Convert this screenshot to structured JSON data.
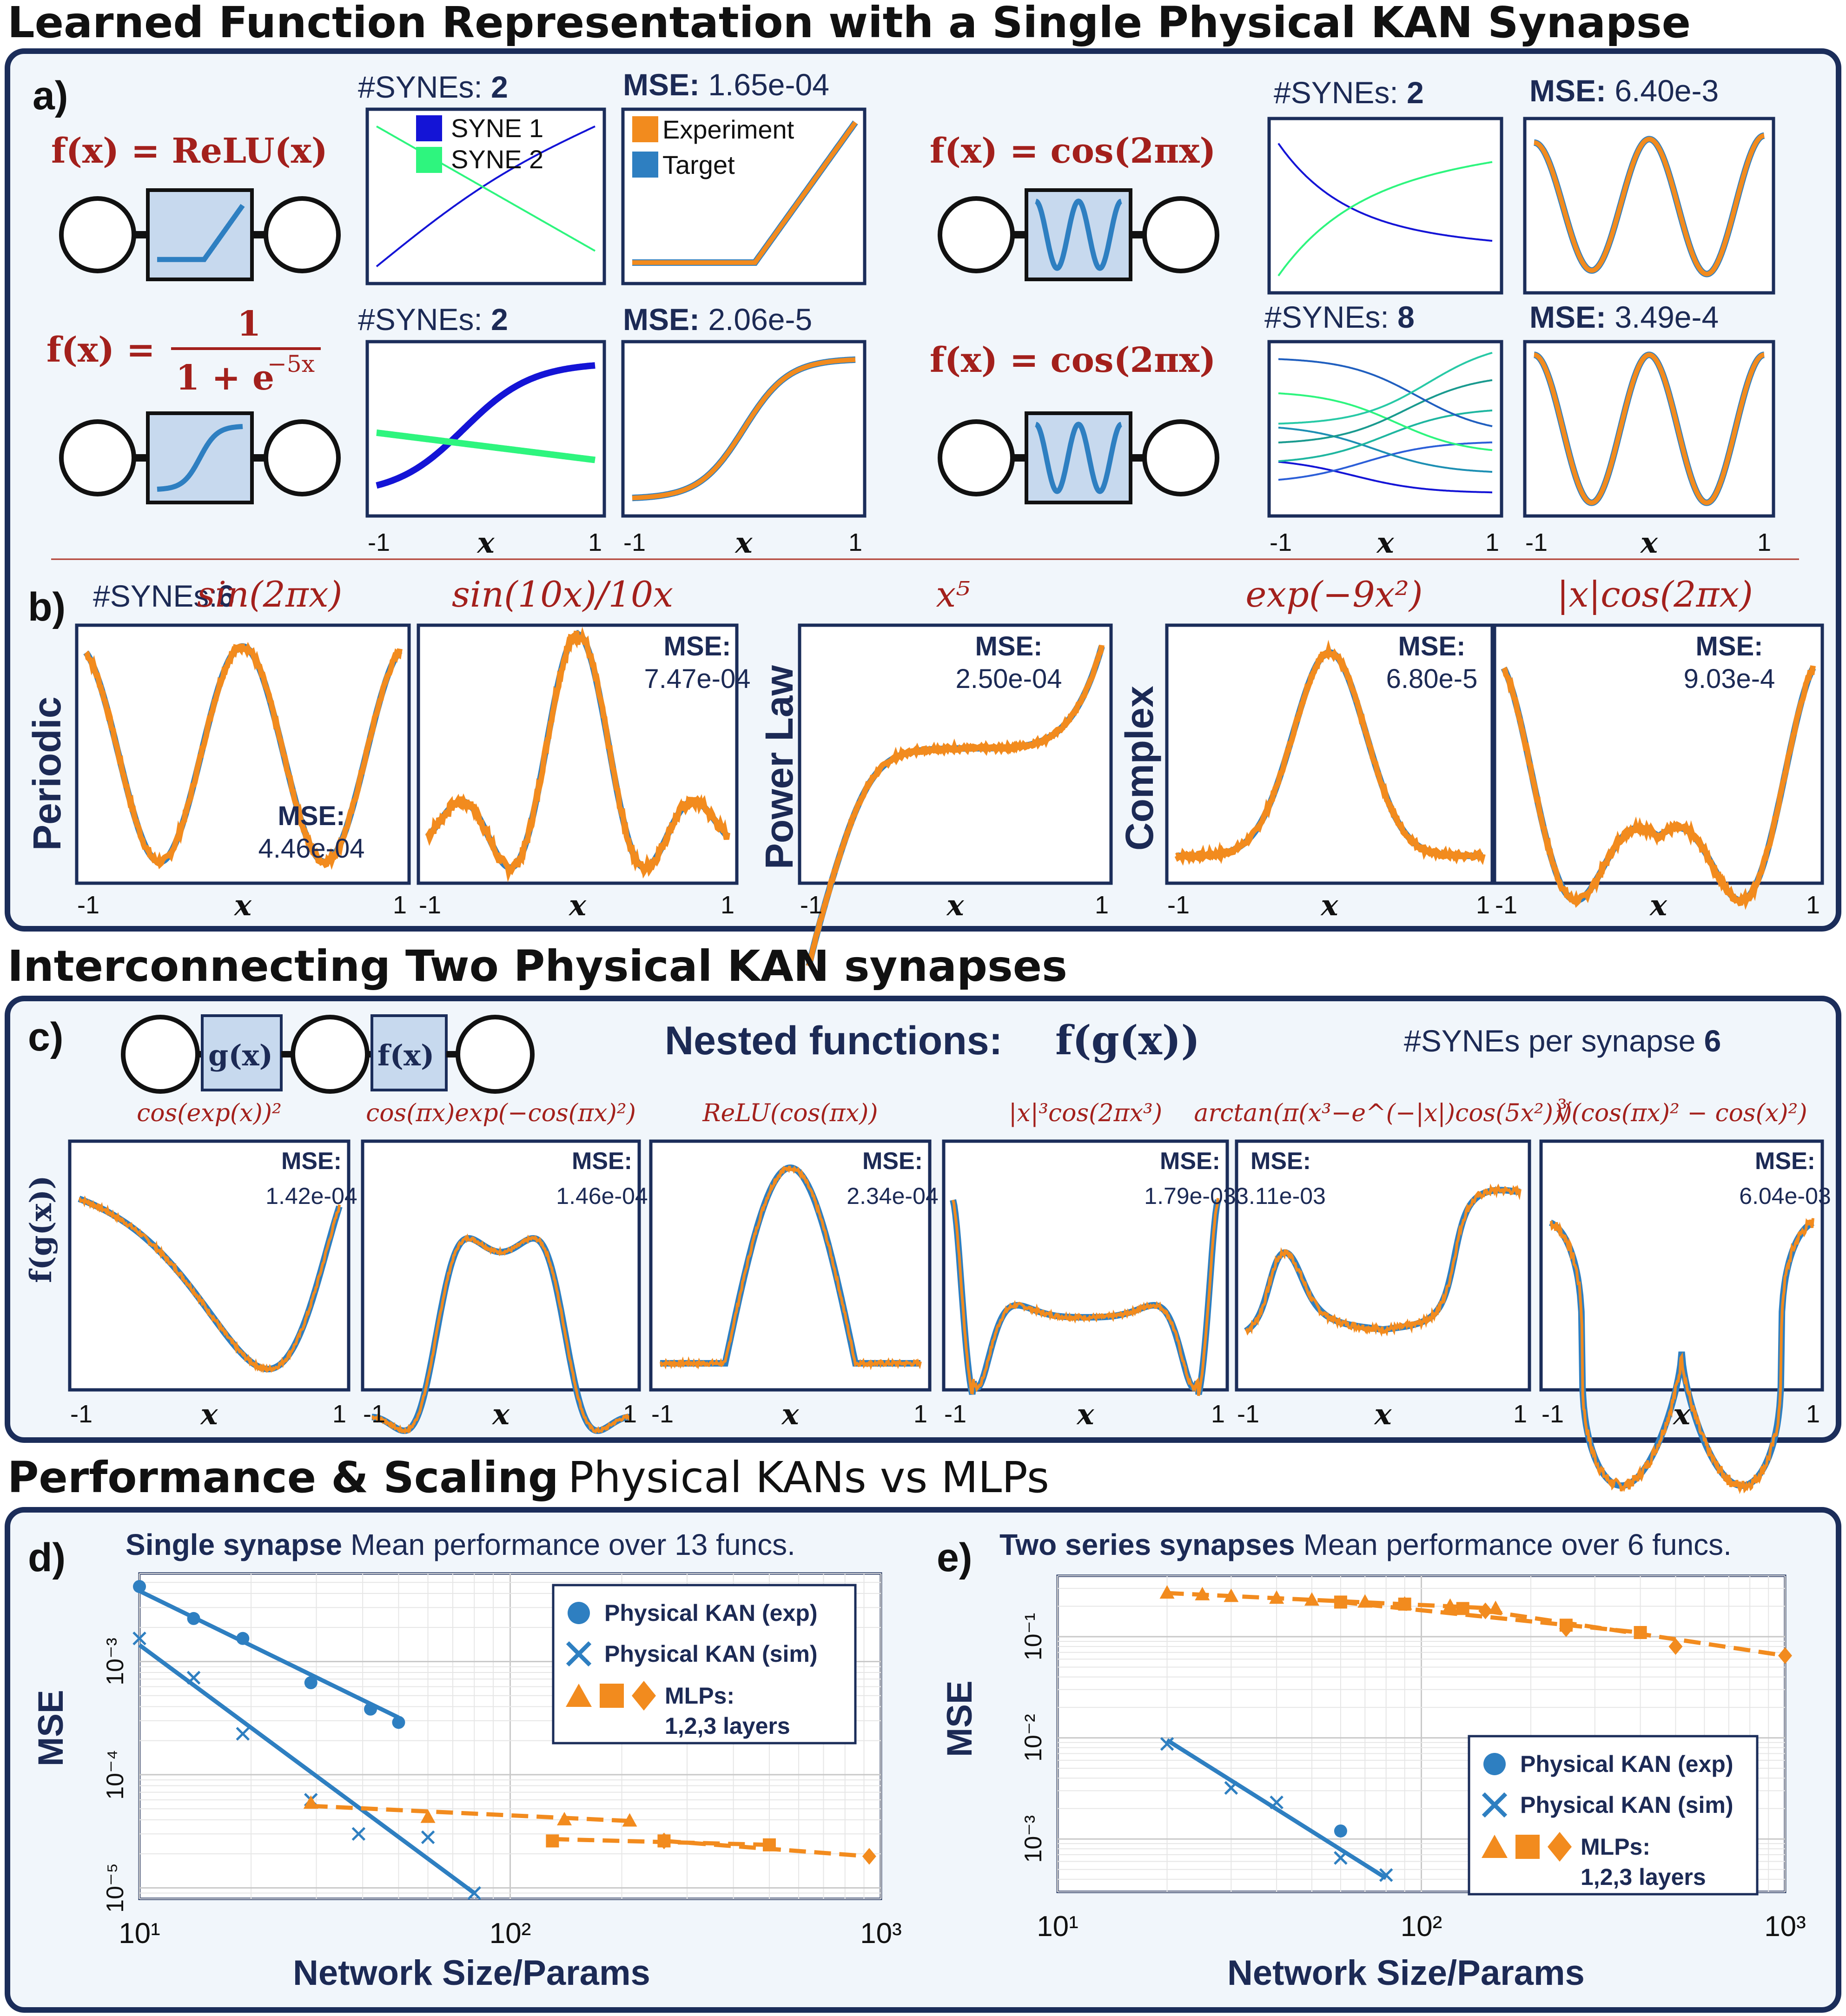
{
  "figure": {
    "sections": {
      "s1": "Learned Function Representation with a Single Physical KAN Synapse",
      "s2": "Interconnecting Two Physical KAN synapses",
      "s3_bold": "Performance & Scaling",
      "s3_rest": "Physical KANs vs MLPs"
    },
    "panel_labels": {
      "a": "a)",
      "b": "b)",
      "c": "c)",
      "d": "d)",
      "e": "e)"
    },
    "colors": {
      "target": "#2e7fc1",
      "experiment": "#f28b1e",
      "syne1": "#1414d6",
      "syne2": "#2ef57e",
      "frame": "#1b2d5a",
      "red": "#a3201c"
    },
    "axis_x_label": "x",
    "ticks": {
      "neg1": "-1",
      "pos1": "1"
    },
    "a": {
      "relu": {
        "formula": "f(x) = ReLU(x)",
        "synes_label": "#SYNEs:",
        "synes": "2",
        "mse_label": "MSE:",
        "mse": "1.65e-04",
        "legend1": "SYNE 1",
        "legend2": "SYNE 2",
        "exp_legend": "Experiment",
        "target_legend": "Target"
      },
      "sig": {
        "formula_lhs": "f(x) =",
        "formula_num": "1",
        "formula_den": "1 + e",
        "formula_exp": "−5x",
        "synes_label": "#SYNEs:",
        "synes": "2",
        "mse_label": "MSE:",
        "mse": "2.06e-5"
      },
      "cos1": {
        "formula": "f(x) = cos(2πx)",
        "synes_label": "#SYNEs:",
        "synes": "2",
        "mse_label": "MSE:",
        "mse": "6.40e-3"
      },
      "cos2": {
        "formula": "f(x) = cos(2πx)",
        "synes_label": "#SYNEs:",
        "synes": "8",
        "mse_label": "MSE:",
        "mse": "3.49e-4"
      }
    },
    "b": {
      "synes_label": "#SYNEs:",
      "synes": "6",
      "cats": {
        "periodic": "Periodic",
        "power": "Power Law",
        "complex": "Complex"
      },
      "mse_label": "MSE:",
      "plots": [
        {
          "title": "sin(2πx)",
          "mse": "4.46e-04"
        },
        {
          "title": "sin(10x)/10x",
          "mse": "7.47e-04"
        },
        {
          "title": "x⁵",
          "mse": "2.50e-04"
        },
        {
          "title": "exp(−9x²)",
          "mse": "6.80e-5"
        },
        {
          "title": "|x|cos(2πx)",
          "mse": "9.03e-4"
        }
      ]
    },
    "c": {
      "g_box": "g(x)",
      "f_box": "f(x)",
      "nested_label": "Nested functions:",
      "nested_fn": "f(g(x))",
      "synes_text": "#SYNEs per synapse",
      "synes": "6",
      "ylabel": "f(g(x))",
      "mse_label": "MSE:",
      "plots": [
        {
          "title": "cos(exp(x))²",
          "mse": "1.42e-04"
        },
        {
          "title": "cos(πx)exp(−cos(πx)²)",
          "mse": "1.46e-04"
        },
        {
          "title": "ReLU(cos(πx))",
          "mse": "2.34e-04"
        },
        {
          "title": "|x|³cos(2πx³)",
          "mse": "1.79e-03"
        },
        {
          "title": "arctan(π(x³−e^(−|x|)cos(5x²)))",
          "mse": "3.11e-03"
        },
        {
          "title": "∛(cos(πx)² − cos(x)²)",
          "mse": "6.04e-03"
        }
      ]
    }
  },
  "chart_data": [
    {
      "type": "scatter",
      "panel": "d)",
      "title_bold": "Single synapse",
      "title": "Mean performance over 13 funcs.",
      "xlabel": "Network Size/Params",
      "ylabel": "MSE",
      "xscale": "log",
      "yscale": "log",
      "xlim": [
        10,
        1000
      ],
      "ylim": [
        8e-06,
        0.006
      ],
      "xticks": [
        "10¹",
        "10²",
        "10³"
      ],
      "yticks": [
        "10⁻³",
        "10⁻⁴",
        "10⁻⁵"
      ],
      "grid": true,
      "legend_position": "top-right",
      "legend": [
        "Physical KAN (exp)",
        "Physical KAN (sim)",
        "MLPs:",
        "1,2,3 layers"
      ],
      "series": [
        {
          "name": "Physical KAN (exp)",
          "marker": "circle",
          "color": "#2e7fc1",
          "x": [
            10,
            14,
            19,
            29,
            42,
            50
          ],
          "y": [
            0.0046,
            0.0024,
            0.0016,
            0.00065,
            0.00038,
            0.00029
          ],
          "fit": [
            [
              10,
              0.0042
            ],
            [
              50,
              0.00032
            ]
          ]
        },
        {
          "name": "Physical KAN (sim)",
          "marker": "x",
          "color": "#2e7fc1",
          "x": [
            10,
            14,
            19,
            29,
            39,
            60,
            80
          ],
          "y": [
            0.0016,
            0.00072,
            0.00023,
            6e-05,
            3e-05,
            2.8e-05,
            9e-06
          ],
          "fit": [
            [
              10,
              0.0014
            ],
            [
              80,
              9e-06
            ]
          ]
        },
        {
          "name": "MLP 1 layer",
          "marker": "triangle",
          "color": "#f28b1e",
          "x": [
            29,
            60,
            140,
            210
          ],
          "y": [
            5.6e-05,
            4.2e-05,
            4e-05,
            3.9e-05
          ],
          "fit": [
            [
              29,
              5.3e-05
            ],
            [
              210,
              3.9e-05
            ]
          ]
        },
        {
          "name": "MLP 2 layers",
          "marker": "square",
          "color": "#f28b1e",
          "x": [
            130,
            260,
            500
          ],
          "y": [
            2.6e-05,
            2.6e-05,
            2.4e-05
          ],
          "fit": [
            [
              130,
              2.7e-05
            ],
            [
              500,
              2.4e-05
            ]
          ]
        },
        {
          "name": "MLP 3 layers",
          "marker": "diamond",
          "color": "#f28b1e",
          "x": [
            260,
            930
          ],
          "y": [
            2.6e-05,
            1.9e-05
          ],
          "fit": [
            [
              260,
              2.6e-05
            ],
            [
              930,
              1.9e-05
            ]
          ]
        }
      ]
    },
    {
      "type": "scatter",
      "panel": "e)",
      "title_bold": "Two series synapses",
      "title": "Mean performance over 6 funcs.",
      "xlabel": "Network Size/Params",
      "ylabel": "MSE",
      "xscale": "log",
      "yscale": "log",
      "xlim": [
        10,
        1000
      ],
      "ylim": [
        0.0003,
        0.4
      ],
      "xticks": [
        "10¹",
        "10²",
        "10³"
      ],
      "yticks": [
        "10⁻¹",
        "10⁻²",
        "10⁻³"
      ],
      "grid": true,
      "legend_position": "bottom-right",
      "legend": [
        "Physical KAN (exp)",
        "Physical KAN (sim)",
        "MLPs:",
        "1,2,3 layers"
      ],
      "series": [
        {
          "name": "Physical KAN (exp)",
          "marker": "circle",
          "color": "#2e7fc1",
          "x": [
            60
          ],
          "y": [
            0.0012
          ]
        },
        {
          "name": "Physical KAN (sim)",
          "marker": "x",
          "color": "#2e7fc1",
          "x": [
            20,
            30,
            40,
            60,
            80
          ],
          "y": [
            0.0087,
            0.0032,
            0.0023,
            0.00065,
            0.00044
          ],
          "fit": [
            [
              20,
              0.0095
            ],
            [
              80,
              0.00041
            ]
          ]
        },
        {
          "name": "MLP 1 layer",
          "marker": "triangle",
          "color": "#f28b1e",
          "x": [
            20,
            25,
            30,
            40,
            50,
            70,
            90,
            120,
            160
          ],
          "y": [
            0.27,
            0.26,
            0.25,
            0.24,
            0.23,
            0.22,
            0.21,
            0.2,
            0.19
          ],
          "fit": [
            [
              20,
              0.27
            ],
            [
              160,
              0.19
            ]
          ]
        },
        {
          "name": "MLP 2 layers",
          "marker": "square",
          "color": "#f28b1e",
          "x": [
            60,
            90,
            130,
            250,
            400
          ],
          "y": [
            0.22,
            0.21,
            0.19,
            0.13,
            0.11
          ],
          "fit": [
            [
              60,
              0.22
            ],
            [
              400,
              0.11
            ]
          ]
        },
        {
          "name": "MLP 3 layers",
          "marker": "diamond",
          "color": "#f28b1e",
          "x": [
            150,
            250,
            500,
            1000
          ],
          "y": [
            0.18,
            0.12,
            0.08,
            0.065
          ],
          "fit": [
            [
              150,
              0.18
            ],
            [
              1000,
              0.065
            ]
          ]
        }
      ]
    }
  ]
}
